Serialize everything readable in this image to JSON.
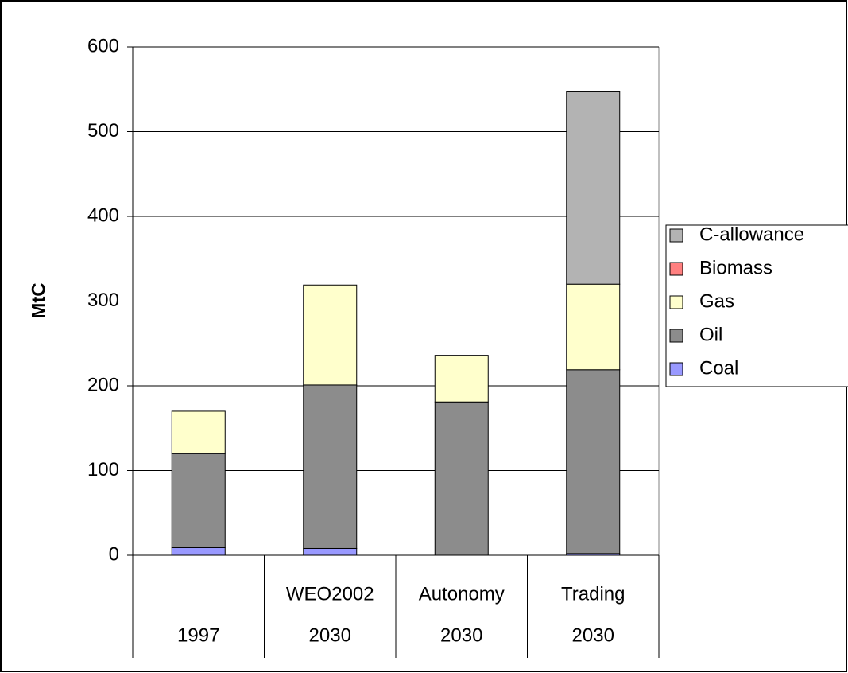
{
  "chart_data": {
    "type": "stacked_bar",
    "y_label": "MtC",
    "categories": [
      null,
      "WEO2002",
      "Autonomy",
      "Trading"
    ],
    "category_groups": [
      "1997",
      "2030",
      "2030",
      "2030"
    ],
    "series": [
      {
        "name": "Coal",
        "color": "#9999ff",
        "values": [
          9,
          8,
          0,
          2
        ]
      },
      {
        "name": "Oil",
        "color": "#8c8c8c",
        "values": [
          111,
          193,
          181,
          217
        ]
      },
      {
        "name": "Gas",
        "color": "#ffffcc",
        "values": [
          50,
          118,
          55,
          101
        ]
      },
      {
        "name": "Biomass",
        "color": "#ff8080",
        "values": [
          0,
          0,
          0,
          0
        ]
      },
      {
        "name": "C-allowance",
        "color": "#b3b3b3",
        "values": [
          0,
          0,
          0,
          227
        ]
      }
    ],
    "ylim": [
      0,
      600
    ],
    "yticks": [
      0,
      100,
      200,
      300,
      400,
      500,
      600
    ],
    "grid": true,
    "legend": "right"
  }
}
